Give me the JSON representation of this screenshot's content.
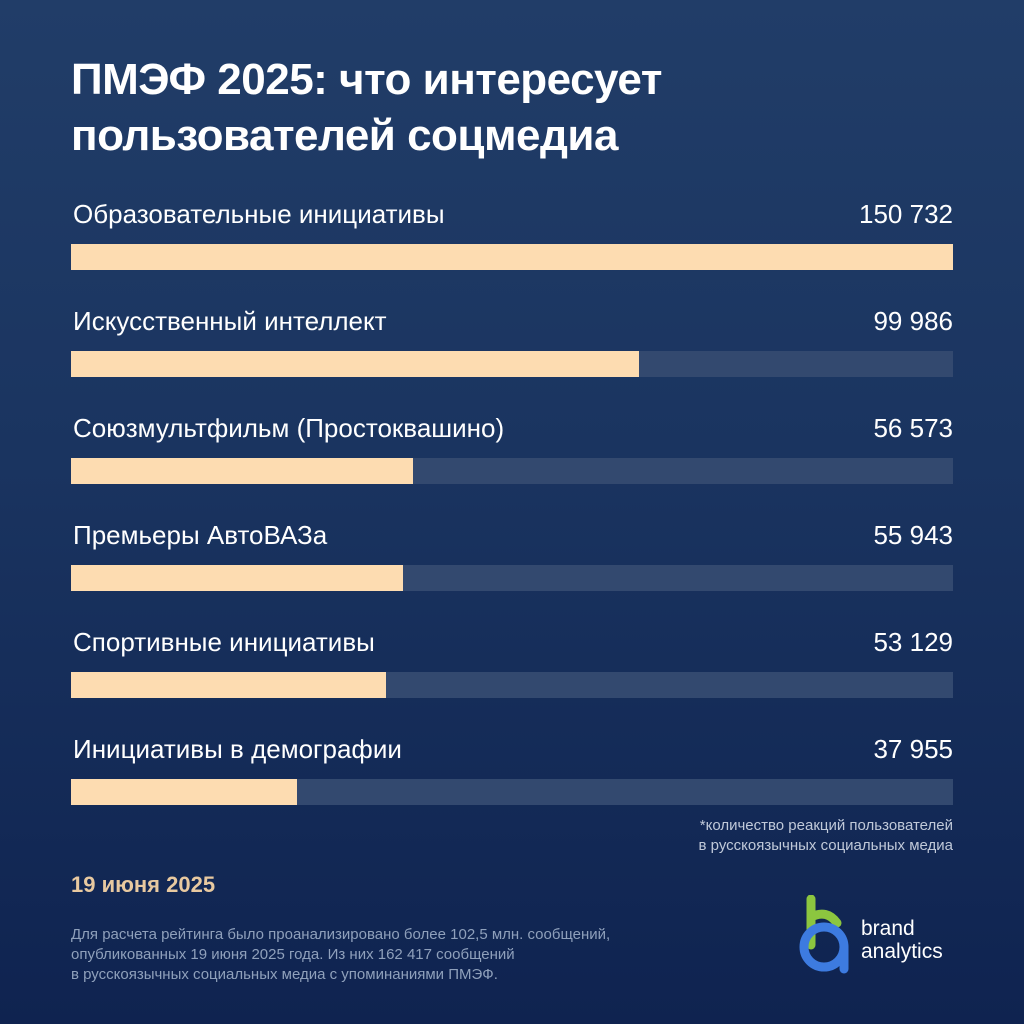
{
  "title": {
    "line1": "ПМЭФ 2025: что интересует",
    "line2": "пользователей соцмедиа"
  },
  "chart_data": {
    "type": "bar",
    "orientation": "horizontal",
    "categories": [
      "Образовательные инициативы",
      "Искусственный интеллект",
      "Союзмультфильм (Простоквашино)",
      "Премьеры АвтоВАЗа",
      "Спортивные инициативы",
      "Инициативы в демографии"
    ],
    "values": [
      150732,
      99986,
      56573,
      55943,
      53129,
      37955
    ],
    "value_labels": [
      "150 732",
      "99 986",
      "56 573",
      "55 943",
      "53 129",
      "37 955"
    ],
    "fill_fractions": [
      1.0,
      0.644,
      0.388,
      0.376,
      0.357,
      0.256
    ],
    "colors": {
      "bar": "#fddcb1",
      "track": "#33496f"
    }
  },
  "footnote": {
    "line1": "*количество реакций пользователей",
    "line2": "в русскоязычных социальных медиа"
  },
  "date": "19 июня 2025",
  "methodology": {
    "line1": "Для расчета рейтинга было проанализировано более 102,5 млн. сообщений,",
    "line2": "опубликованных 19 июня 2025 года. Из них 162 417 сообщений",
    "line3": "в русскоязычных социальных медиа с упоминаниями ПМЭФ."
  },
  "logo": {
    "line1": "brand",
    "line2": "analytics",
    "colors": {
      "green": "#8cc63f",
      "blue": "#3d7be0"
    }
  }
}
